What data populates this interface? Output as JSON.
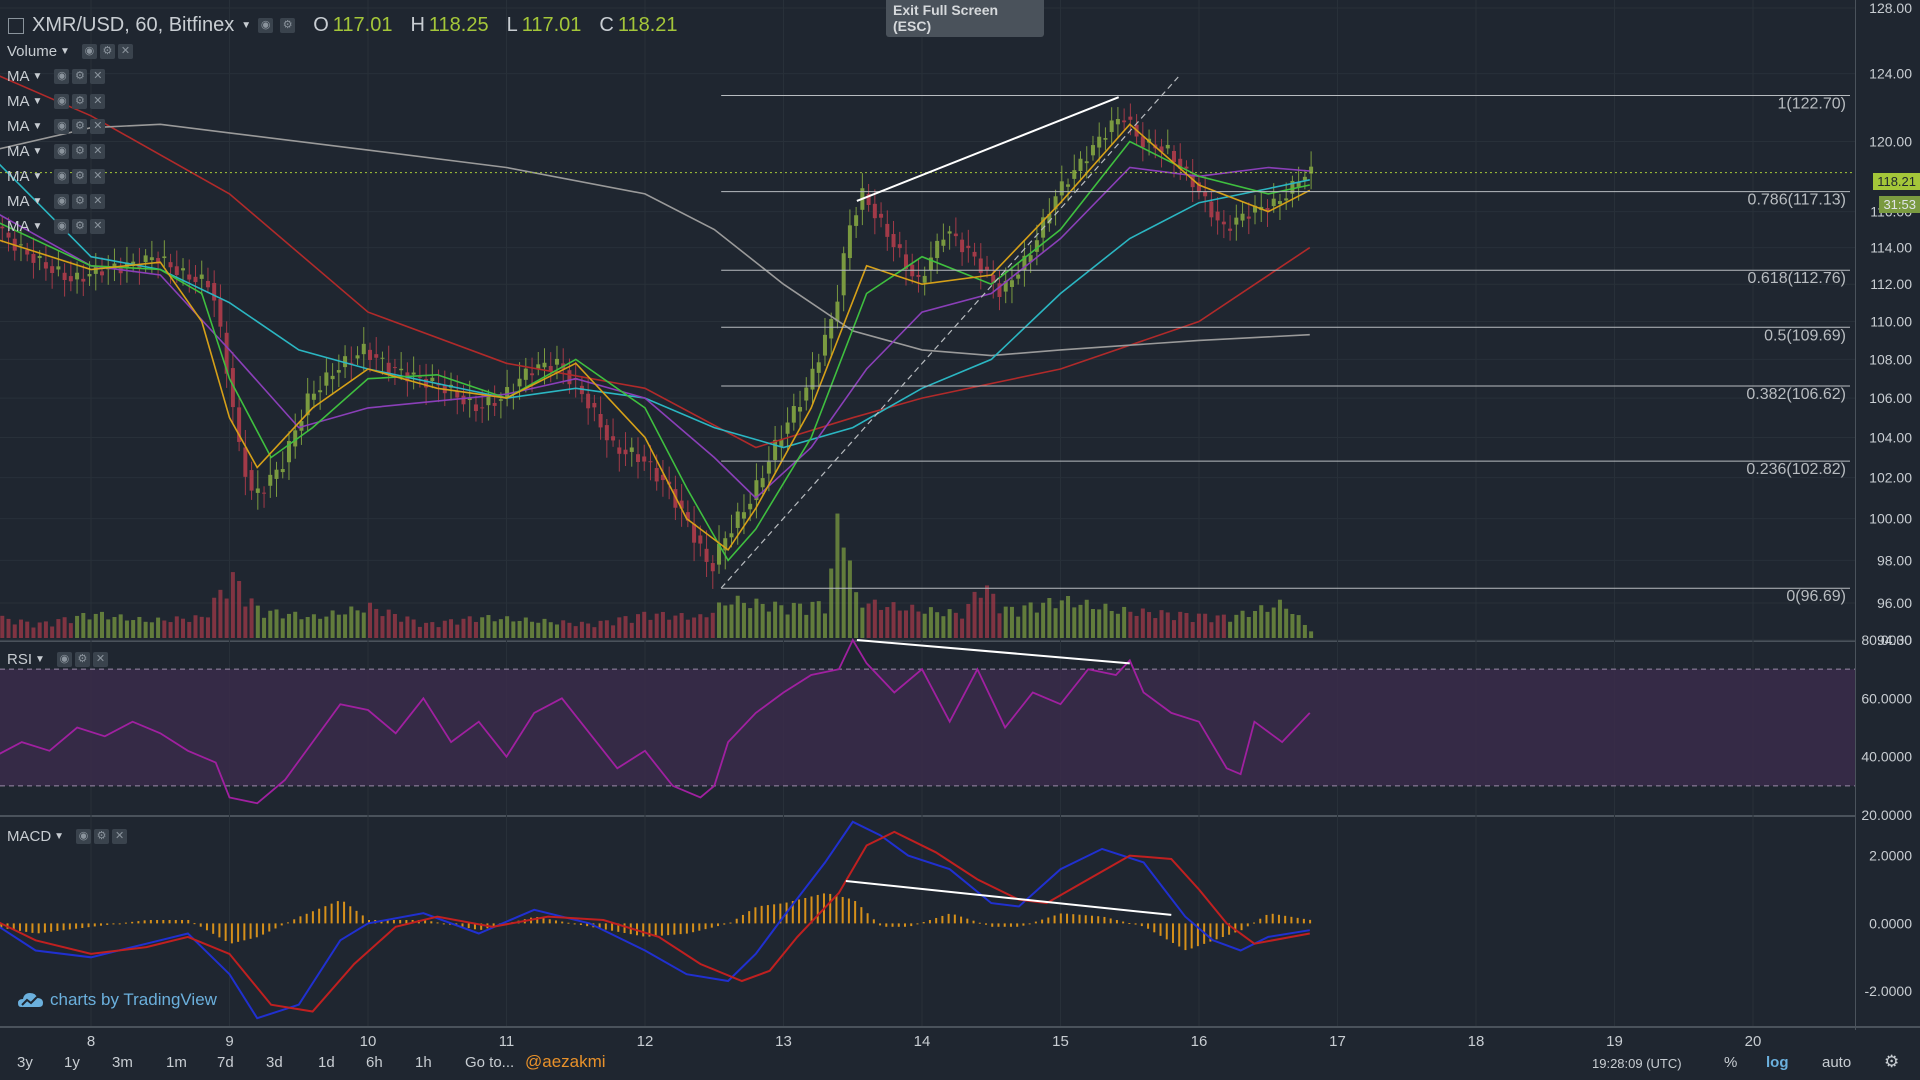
{
  "header": {
    "symbol": "XMR/USD, 60, Bitfinex",
    "open_label": "O",
    "open": "117.01",
    "high_label": "H",
    "high": "118.25",
    "low_label": "L",
    "low": "117.01",
    "close_label": "C",
    "close": "118.21"
  },
  "exit_fullscreen": {
    "line1": "Exit Full Screen",
    "line2": "(ESC)"
  },
  "indicators": [
    "Volume",
    "MA",
    "MA",
    "MA",
    "MA",
    "MA",
    "MA",
    "MA"
  ],
  "rsi_label": "RSI",
  "macd_label": "MACD",
  "branding": "charts by TradingView",
  "bottom_bar": {
    "ranges": [
      "3y",
      "1y",
      "3m",
      "1m",
      "7d",
      "3d",
      "1d",
      "6h",
      "1h"
    ],
    "goto": "Go to...",
    "author": "@aezakmi",
    "time": "19:28:09 (UTC)",
    "percent": "%",
    "log": "log",
    "auto": "auto"
  },
  "colors": {
    "background": "#1f2630",
    "up": "#7a9a40",
    "down": "#a23a48",
    "ma_red": "#b02a2a",
    "ma_gray": "#9a9a9a",
    "ma_cyan": "#2bb6c2",
    "ma_purple": "#8a3fb8",
    "ma_green": "#3fbf3f",
    "ma_orange": "#d6a018",
    "rsi_line": "#a020a0",
    "macd_line": "#2030d0",
    "signal_line": "#c02020",
    "histogram": "#d6901a"
  },
  "chart_data": [
    {
      "type": "line",
      "panel": "price",
      "title": "XMR/USD, 60, Bitfinex",
      "x_ticks": [
        "8",
        "9",
        "10",
        "11",
        "12",
        "13",
        "14",
        "15",
        "16",
        "17",
        "18",
        "19",
        "20"
      ],
      "y_ticks": [
        "128.00",
        "124.00",
        "120.00",
        "116.00",
        "114.00",
        "112.00",
        "110.00",
        "108.00",
        "106.00",
        "104.00",
        "102.00",
        "100.00",
        "98.00",
        "96.00",
        "94.30"
      ],
      "scale": "log",
      "ylim": [
        94.3,
        128
      ],
      "last_price": "118.21",
      "countdown": "31:53",
      "price_series": {
        "x": [
          7.3,
          7.5,
          7.7,
          7.9,
          8.1,
          8.3,
          8.5,
          8.7,
          8.9,
          9.0,
          9.1,
          9.2,
          9.4,
          9.6,
          9.8,
          10.0,
          10.2,
          10.4,
          10.6,
          10.8,
          11.0,
          11.2,
          11.4,
          11.6,
          11.8,
          12.0,
          12.2,
          12.4,
          12.5,
          12.6,
          12.8,
          13.0,
          13.2,
          13.4,
          13.5,
          13.6,
          13.8,
          14.0,
          14.2,
          14.4,
          14.6,
          14.8,
          15.0,
          15.2,
          15.4,
          15.5,
          15.6,
          15.8,
          16.0,
          16.2,
          16.4,
          16.6,
          16.8
        ],
        "values": [
          115.5,
          114.0,
          113.0,
          112.2,
          112.8,
          113.0,
          113.5,
          112.5,
          112.0,
          108.0,
          103.5,
          101.0,
          102.5,
          106.0,
          107.5,
          108.5,
          107.5,
          107.0,
          106.5,
          105.5,
          106.0,
          107.5,
          107.8,
          106.0,
          103.5,
          103.0,
          101.5,
          99.0,
          97.5,
          99.0,
          101.0,
          104.0,
          106.5,
          110.5,
          115.0,
          117.0,
          114.5,
          112.0,
          115.0,
          113.5,
          111.5,
          113.5,
          117.0,
          119.0,
          121.0,
          121.5,
          120.0,
          119.5,
          117.5,
          115.0,
          116.0,
          116.5,
          118.2
        ]
      },
      "moving_averages": [
        {
          "color": "ma_red",
          "x": [
            7.3,
            8.0,
            9.0,
            10.0,
            11.0,
            12.0,
            12.8,
            13.5,
            14.0,
            15.0,
            16.0,
            16.8
          ],
          "values": [
            124.0,
            121.5,
            117.0,
            110.5,
            107.8,
            106.5,
            103.5,
            105.0,
            106.0,
            107.5,
            110.0,
            114.0
          ]
        },
        {
          "color": "ma_gray",
          "x": [
            7.3,
            8.0,
            8.5,
            9.0,
            10.0,
            11.0,
            12.0,
            12.5,
            13.0,
            13.5,
            14.0,
            14.5,
            15.0,
            16.0,
            16.8
          ],
          "values": [
            119.5,
            120.8,
            121.0,
            120.5,
            119.5,
            118.5,
            117.0,
            115.0,
            112.0,
            109.5,
            108.5,
            108.2,
            108.5,
            109.0,
            109.3
          ]
        },
        {
          "color": "ma_cyan",
          "x": [
            7.3,
            8.0,
            8.5,
            9.0,
            9.5,
            10.0,
            11.0,
            11.5,
            12.0,
            12.5,
            13.0,
            13.5,
            14.0,
            14.5,
            15.0,
            15.5,
            16.0,
            16.5,
            16.8
          ],
          "values": [
            119.0,
            113.5,
            112.8,
            111.0,
            108.5,
            107.5,
            106.0,
            106.5,
            106.0,
            104.5,
            103.5,
            104.5,
            106.5,
            108.0,
            111.5,
            114.5,
            116.5,
            117.3,
            117.8
          ]
        },
        {
          "color": "ma_purple",
          "x": [
            7.3,
            8.0,
            8.5,
            9.0,
            9.5,
            10.0,
            11.0,
            11.5,
            12.0,
            12.5,
            12.8,
            13.2,
            13.6,
            14.0,
            14.5,
            15.0,
            15.5,
            16.0,
            16.5,
            16.8
          ],
          "values": [
            116.0,
            113.0,
            112.5,
            108.5,
            104.5,
            105.5,
            106.2,
            107.0,
            106.0,
            103.0,
            101.0,
            103.5,
            107.5,
            110.5,
            111.5,
            114.5,
            118.5,
            118.0,
            118.5,
            118.3
          ]
        },
        {
          "color": "ma_green",
          "x": [
            7.3,
            8.0,
            8.5,
            8.8,
            9.0,
            9.3,
            9.6,
            10.0,
            10.5,
            11.0,
            11.5,
            12.0,
            12.3,
            12.6,
            12.8,
            13.2,
            13.6,
            14.0,
            14.5,
            15.0,
            15.5,
            16.0,
            16.5,
            16.8
          ],
          "values": [
            115.5,
            113.0,
            112.8,
            111.5,
            107.0,
            103.0,
            104.5,
            107.0,
            107.2,
            106.0,
            108.0,
            105.5,
            101.5,
            98.0,
            99.5,
            104.0,
            111.5,
            113.5,
            112.0,
            115.0,
            120.0,
            118.0,
            117.0,
            117.5
          ]
        },
        {
          "color": "ma_orange",
          "x": [
            7.3,
            8.0,
            8.5,
            8.8,
            9.0,
            9.2,
            9.6,
            10.0,
            10.5,
            11.0,
            11.5,
            12.0,
            12.3,
            12.6,
            12.8,
            13.2,
            13.6,
            14.0,
            14.5,
            15.0,
            15.5,
            16.0,
            16.5,
            16.8
          ],
          "values": [
            114.5,
            112.8,
            113.2,
            110.0,
            105.0,
            102.5,
            105.5,
            107.5,
            106.5,
            106.0,
            107.8,
            104.0,
            100.0,
            98.5,
            100.5,
            105.5,
            113.0,
            112.0,
            112.5,
            116.5,
            121.0,
            117.5,
            116.0,
            117.2
          ]
        }
      ],
      "fibonacci": [
        {
          "label": "1(122.70)",
          "value": 122.7
        },
        {
          "label": "0.786(117.13)",
          "value": 117.13
        },
        {
          "label": "0.618(112.76)",
          "value": 112.76
        },
        {
          "label": "0.5(109.69)",
          "value": 109.69
        },
        {
          "label": "0.382(106.62)",
          "value": 106.62
        },
        {
          "label": "0.236(102.82)",
          "value": 102.82
        },
        {
          "label": "0(96.69)",
          "value": 96.69
        }
      ],
      "fib_x_range": [
        12.55,
        16.8
      ],
      "trendlines": [
        {
          "x": [
            13.53,
            15.42
          ],
          "values": [
            116.6,
            122.6
          ],
          "style": "solid"
        },
        {
          "x": [
            12.55,
            15.85
          ],
          "values": [
            96.7,
            123.8
          ],
          "style": "dashed"
        }
      ]
    },
    {
      "type": "bar",
      "panel": "volume",
      "x": [
        7.3,
        7.6,
        8.0,
        8.4,
        8.8,
        9.0,
        9.2,
        9.6,
        10.0,
        10.4,
        10.8,
        11.2,
        11.6,
        12.0,
        12.4,
        12.6,
        13.0,
        13.3,
        13.4,
        13.5,
        13.6,
        13.8,
        14.0,
        14.3,
        14.4,
        14.6,
        15.0,
        15.4,
        15.8,
        16.2,
        16.6,
        16.8
      ],
      "values": [
        0.3,
        0.2,
        0.35,
        0.25,
        0.3,
        0.9,
        0.4,
        0.3,
        0.45,
        0.2,
        0.3,
        0.25,
        0.2,
        0.35,
        0.3,
        0.55,
        0.45,
        0.5,
        2.0,
        0.6,
        0.5,
        0.45,
        0.4,
        0.35,
        0.8,
        0.4,
        0.55,
        0.4,
        0.35,
        0.3,
        0.5,
        0.1
      ]
    },
    {
      "type": "line",
      "panel": "rsi",
      "y_ticks": [
        "80.0000",
        "60.0000",
        "40.0000",
        "20.0000"
      ],
      "ylim": [
        20,
        80
      ],
      "band": [
        30,
        70
      ],
      "x": [
        7.3,
        7.5,
        7.7,
        7.9,
        8.1,
        8.3,
        8.5,
        8.7,
        8.9,
        9.0,
        9.2,
        9.4,
        9.6,
        9.8,
        10.0,
        10.2,
        10.4,
        10.6,
        10.8,
        11.0,
        11.2,
        11.4,
        11.6,
        11.8,
        12.0,
        12.2,
        12.4,
        12.5,
        12.6,
        12.8,
        13.0,
        13.2,
        13.4,
        13.5,
        13.6,
        13.8,
        14.0,
        14.2,
        14.4,
        14.6,
        14.8,
        15.0,
        15.2,
        15.4,
        15.5,
        15.6,
        15.8,
        16.0,
        16.2,
        16.3,
        16.4,
        16.6,
        16.8
      ],
      "values": [
        40,
        45,
        42,
        50,
        47,
        52,
        48,
        42,
        38,
        26,
        24,
        32,
        45,
        58,
        56,
        48,
        60,
        45,
        52,
        40,
        55,
        60,
        48,
        36,
        42,
        30,
        26,
        30,
        45,
        55,
        62,
        68,
        70,
        80,
        72,
        62,
        70,
        52,
        70,
        50,
        62,
        58,
        70,
        68,
        73,
        62,
        55,
        52,
        36,
        34,
        52,
        45,
        55
      ],
      "trendline": {
        "x": [
          13.53,
          15.5
        ],
        "values": [
          80,
          72
        ]
      }
    },
    {
      "type": "line",
      "panel": "macd",
      "y_ticks": [
        "2.0000",
        "0.0000",
        "-2.0000"
      ],
      "ylim": [
        -3.0,
        3.2
      ],
      "series": [
        {
          "color": "macd_line",
          "x": [
            7.3,
            7.6,
            8.0,
            8.4,
            8.7,
            9.0,
            9.2,
            9.5,
            9.8,
            10.0,
            10.4,
            10.8,
            11.2,
            11.6,
            12.0,
            12.3,
            12.6,
            12.8,
            13.0,
            13.3,
            13.5,
            13.7,
            13.9,
            14.2,
            14.5,
            14.7,
            15.0,
            15.3,
            15.6,
            15.9,
            16.1,
            16.3,
            16.5,
            16.8
          ],
          "values": [
            0,
            -0.8,
            -1.0,
            -0.6,
            -0.3,
            -1.5,
            -2.8,
            -2.4,
            -0.5,
            0,
            0.3,
            -0.3,
            0.4,
            0,
            -0.8,
            -1.5,
            -1.7,
            -0.9,
            0.2,
            1.8,
            3.0,
            2.6,
            2.0,
            1.6,
            0.6,
            0.5,
            1.6,
            2.2,
            1.8,
            0.2,
            -0.5,
            -0.8,
            -0.4,
            -0.2
          ]
        },
        {
          "color": "signal_line",
          "x": [
            7.3,
            7.6,
            8.0,
            8.4,
            8.7,
            9.0,
            9.3,
            9.6,
            9.9,
            10.2,
            10.5,
            10.9,
            11.3,
            11.7,
            12.1,
            12.4,
            12.7,
            12.9,
            13.1,
            13.4,
            13.6,
            13.8,
            14.1,
            14.4,
            14.7,
            14.9,
            15.2,
            15.5,
            15.8,
            16.0,
            16.2,
            16.4,
            16.8
          ],
          "values": [
            0.1,
            -0.5,
            -0.9,
            -0.7,
            -0.4,
            -0.9,
            -2.4,
            -2.6,
            -1.2,
            -0.1,
            0.2,
            -0.1,
            0.2,
            0.1,
            -0.4,
            -1.2,
            -1.7,
            -1.4,
            -0.4,
            0.9,
            2.3,
            2.7,
            2.1,
            1.3,
            0.7,
            0.6,
            1.3,
            2.0,
            1.9,
            1.0,
            0,
            -0.6,
            -0.3
          ]
        }
      ],
      "histogram": {
        "x": [
          7.3,
          7.6,
          8.0,
          8.4,
          8.7,
          9.0,
          9.2,
          9.5,
          9.8,
          10.0,
          10.4,
          10.8,
          11.2,
          11.6,
          12.0,
          12.3,
          12.6,
          12.8,
          13.0,
          13.3,
          13.5,
          13.7,
          13.9,
          14.2,
          14.5,
          14.7,
          15.0,
          15.3,
          15.6,
          15.9,
          16.1,
          16.3,
          16.5,
          16.8
        ],
        "values": [
          -0.1,
          -0.3,
          -0.1,
          0.1,
          0.1,
          -0.6,
          -0.4,
          0.2,
          0.7,
          0.1,
          0.1,
          -0.2,
          0.2,
          -0.1,
          -0.4,
          -0.3,
          0,
          0.5,
          0.6,
          0.9,
          0.7,
          -0.1,
          -0.1,
          0.3,
          -0.1,
          -0.1,
          0.3,
          0.2,
          -0.1,
          -0.8,
          -0.5,
          -0.2,
          0.3,
          0.1
        ]
      },
      "trendline": {
        "x": [
          13.45,
          15.8
        ],
        "values": [
          1.25,
          0.25
        ]
      }
    }
  ]
}
